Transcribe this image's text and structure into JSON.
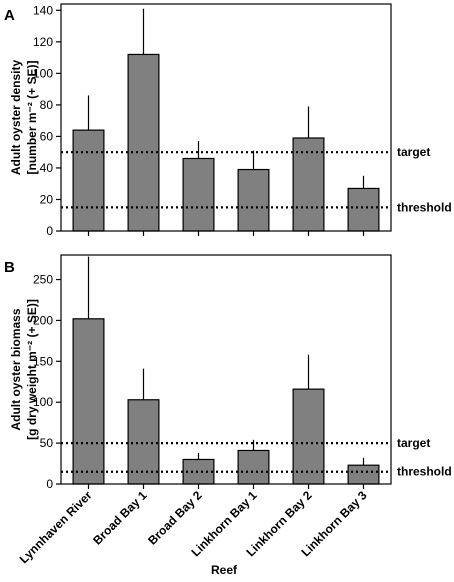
{
  "x_axis_title": "Reef",
  "chart_data": [
    {
      "type": "bar",
      "panel_label": "A",
      "ylabel_line1": "Adult oyster density",
      "ylabel_line2": "[number m⁻² (+ SE)]",
      "categories": [
        "Lynnhaven River",
        "Broad Bay 1",
        "Broad Bay 2",
        "Linkhorn Bay 1",
        "Linkhorn Bay 2",
        "Linkhorn Bay 3"
      ],
      "values": [
        64,
        112,
        46,
        39,
        59,
        27
      ],
      "errors": [
        22,
        29,
        11,
        12,
        20,
        8
      ],
      "ylim": [
        0,
        144
      ],
      "yticks": [
        0,
        20,
        40,
        60,
        80,
        100,
        120,
        140
      ],
      "reference_lines": [
        {
          "label": "target",
          "value": 50
        },
        {
          "label": "threshold",
          "value": 15
        }
      ],
      "grid": false,
      "bar_color": "#808080"
    },
    {
      "type": "bar",
      "panel_label": "B",
      "ylabel_line1": "Adult oyster biomass",
      "ylabel_line2": "[g dry weight m⁻² (+ SE)]",
      "categories": [
        "Lynnhaven River",
        "Broad Bay 1",
        "Broad Bay 2",
        "Linkhorn Bay 1",
        "Linkhorn Bay 2",
        "Linkhorn Bay 3"
      ],
      "values": [
        202,
        103,
        30,
        41,
        116,
        23
      ],
      "errors": [
        76,
        38,
        8,
        13,
        42,
        9
      ],
      "ylim": [
        0,
        280
      ],
      "yticks": [
        0,
        50,
        100,
        150,
        200,
        250
      ],
      "reference_lines": [
        {
          "label": "target",
          "value": 50
        },
        {
          "label": "threshold",
          "value": 15
        }
      ],
      "grid": false,
      "bar_color": "#808080"
    }
  ]
}
